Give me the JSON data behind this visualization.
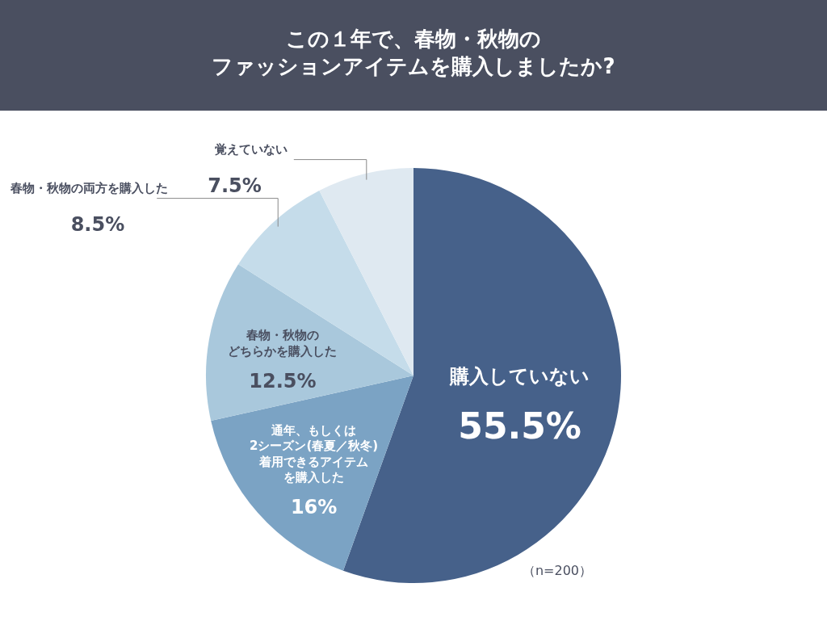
{
  "chart_data": {
    "type": "pie",
    "title": "この１年で、春物・秋物のファッションアイテムを購入しましたか?",
    "categories": [
      "購入していない",
      "通年、もしくは2シーズン(春夏／秋冬)着用できるアイテムを購入した",
      "春物・秋物のどちらかを購入した",
      "春物・秋物の両方を購入した",
      "覚えていない"
    ],
    "values": [
      55.5,
      16,
      12.5,
      8.5,
      7.5
    ],
    "colors": [
      "#46618a",
      "#7ba3c4",
      "#a9c8dc",
      "#c5dcea",
      "#dfe9f1"
    ],
    "value_labels": [
      "55.5%",
      "16%",
      "12.5%",
      "8.5%",
      "7.5%"
    ],
    "annotations": [
      "（n=200）"
    ],
    "legend": false
  }
}
